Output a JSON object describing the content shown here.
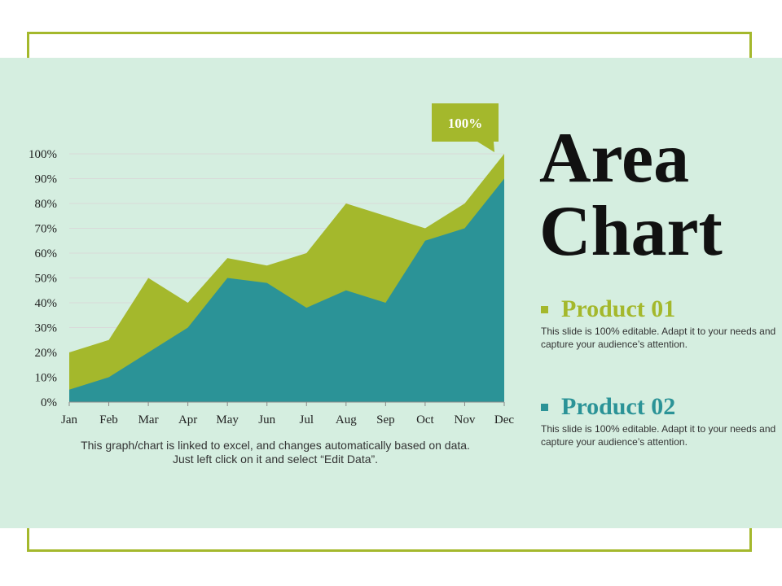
{
  "title_lines": [
    "Area",
    "Chart"
  ],
  "legend": [
    {
      "name": "Product 01",
      "color": "#a4b82c",
      "description": "This slide is 100% editable. Adapt it to your needs and capture your audience’s attention."
    },
    {
      "name": "Product 02",
      "color": "#2b9397",
      "description": "This slide is 100% editable. Adapt it to your needs and capture your audience’s attention."
    }
  ],
  "note": "This graph/chart is linked to excel, and changes automatically based on data. Just left click on it and select “Edit Data”.",
  "colors": {
    "frame": "#a4b82c",
    "panel": "#d5eee0",
    "callout": "#a4b82c",
    "gridline": "#d9d9d9",
    "axis": "#888888"
  },
  "chart_data": {
    "type": "area",
    "categories": [
      "Jan",
      "Feb",
      "Mar",
      "Apr",
      "May",
      "Jun",
      "Jul",
      "Aug",
      "Sep",
      "Oct",
      "Nov",
      "Dec"
    ],
    "series": [
      {
        "name": "Product 01",
        "color": "#a4b82c",
        "values": [
          20,
          25,
          50,
          40,
          58,
          55,
          60,
          80,
          75,
          70,
          80,
          100
        ]
      },
      {
        "name": "Product 02",
        "color": "#2b9397",
        "values": [
          5,
          10,
          20,
          30,
          50,
          48,
          38,
          45,
          40,
          65,
          70,
          90
        ]
      }
    ],
    "yticks": [
      "0%",
      "10%",
      "20%",
      "30%",
      "40%",
      "50%",
      "60%",
      "70%",
      "80%",
      "90%",
      "100%"
    ],
    "ylim": [
      0,
      100
    ],
    "grid": true,
    "callout": {
      "text": "100%",
      "category": "Dec",
      "series": "Product 01",
      "value": 100
    }
  }
}
